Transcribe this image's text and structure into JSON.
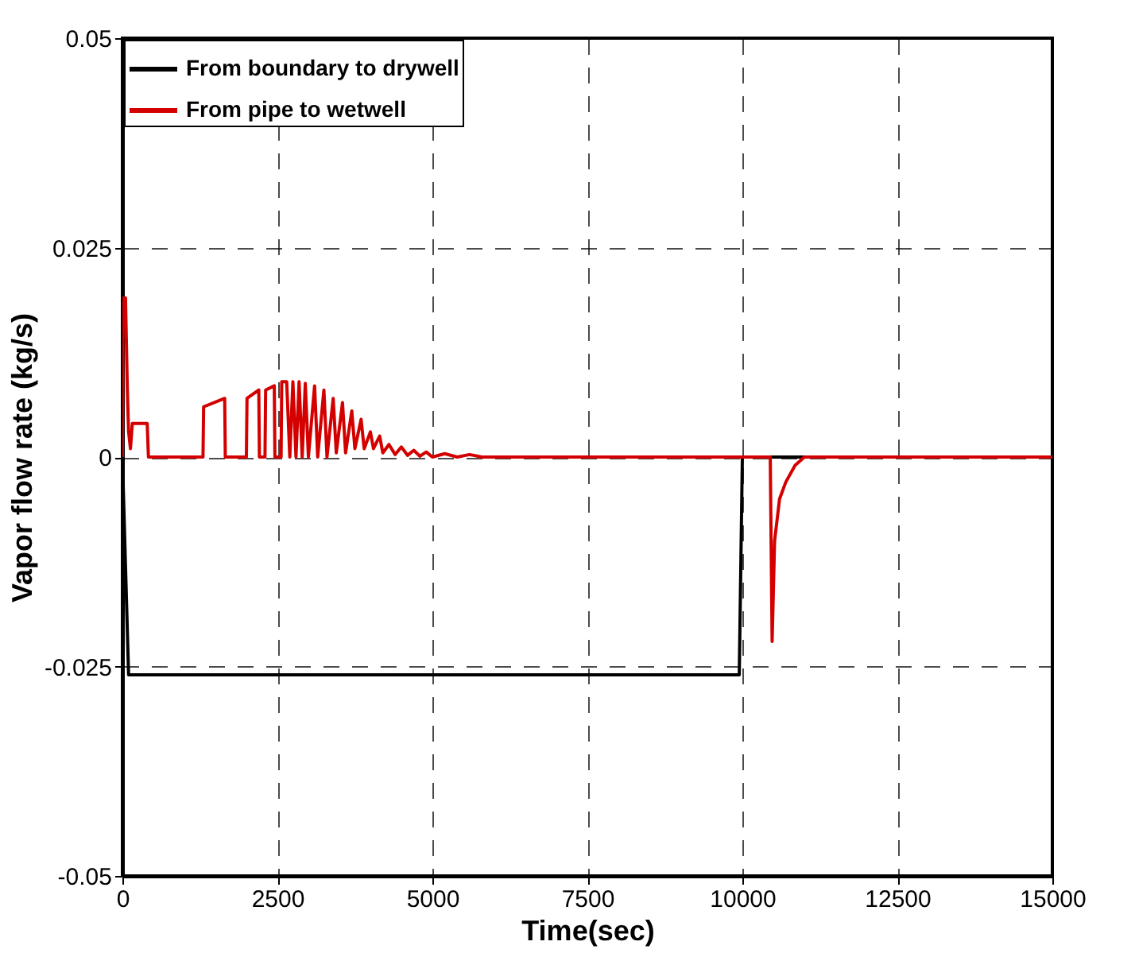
{
  "chart_data": {
    "type": "line",
    "xlabel": "Time(sec)",
    "ylabel": "Vapor flow rate (kg/s)",
    "xlim": [
      0,
      15000
    ],
    "xticks": [
      0,
      2500,
      5000,
      7500,
      10000,
      12500,
      15000
    ],
    "ylim": [
      -0.05,
      0.05
    ],
    "yticks": [
      -0.05,
      -0.025,
      0,
      0.025,
      0.05
    ],
    "grid": true,
    "legend": "top left",
    "line_style": "solid",
    "series": [
      {
        "name": "From boundary to drywell",
        "color": "#000000",
        "x": [
          0,
          100,
          9950,
          10000,
          15000
        ],
        "values": [
          0,
          -0.026,
          -0.026,
          0,
          0
        ]
      },
      {
        "name": "From pipe to wetwell",
        "color": "#d40000",
        "x": [
          0,
          10,
          50,
          80,
          100,
          130,
          160,
          200,
          400,
          420,
          1300,
          1310,
          1650,
          1660,
          2000,
          2010,
          2200,
          2210,
          2300,
          2310,
          2450,
          2460,
          2560,
          2570,
          2650,
          2700,
          2750,
          2800,
          2850,
          2900,
          2950,
          3000,
          3100,
          3150,
          3250,
          3300,
          3400,
          3450,
          3550,
          3600,
          3700,
          3750,
          3850,
          3900,
          4000,
          4050,
          4150,
          4200,
          4300,
          4400,
          4500,
          4600,
          4700,
          4800,
          4900,
          5000,
          5200,
          5400,
          5600,
          5800,
          10450,
          10480,
          10520,
          10600,
          10700,
          10850,
          11000,
          15000
        ],
        "values": [
          0,
          0.019,
          0.019,
          0.008,
          0.003,
          0.001,
          0.004,
          0.004,
          0.004,
          0,
          0,
          0.006,
          0.007,
          0,
          0,
          0.007,
          0.008,
          0,
          0,
          0.008,
          0.0085,
          0,
          0,
          0.009,
          0.009,
          0,
          0.009,
          0,
          0.009,
          0,
          0.0088,
          0,
          0.0085,
          0,
          0.008,
          0,
          0.007,
          0.0005,
          0.0065,
          0.0005,
          0.0055,
          0.001,
          0.0045,
          0.001,
          0.003,
          0.001,
          0.0025,
          0.0005,
          0.0015,
          0.0003,
          0.0012,
          0.0002,
          0.0008,
          0.0001,
          0.0006,
          0,
          0.0004,
          0,
          0.0003,
          0,
          0,
          -0.022,
          -0.01,
          -0.005,
          -0.003,
          -0.001,
          0,
          0
        ]
      }
    ]
  }
}
